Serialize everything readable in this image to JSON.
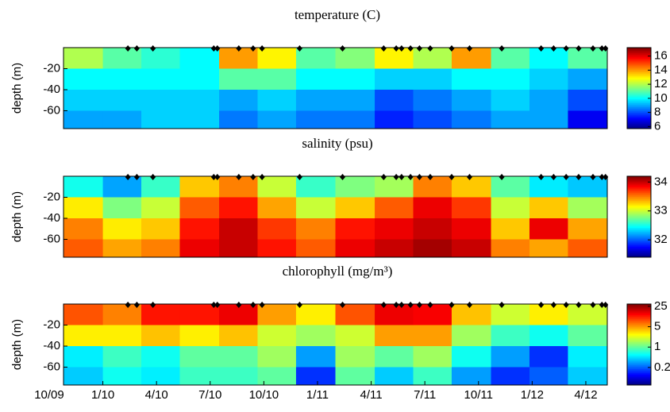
{
  "chart_data": [
    {
      "type": "heatmap",
      "title": "temperature (C)",
      "ylabel": "depth (m)",
      "colormap": "jet",
      "xlim": [
        0.8,
        31.2
      ],
      "ylim": [
        -77,
        0
      ],
      "yticks": [
        -20,
        -40,
        -60
      ],
      "clim": [
        5.7,
        17.2
      ],
      "cticks": [
        6,
        8,
        10,
        12,
        14,
        16
      ],
      "samples": [
        4.4,
        4.9,
        5.8,
        9.2,
        9.4,
        10.6,
        11.4,
        11.9,
        14.0,
        16.4,
        18.7,
        19.4,
        19.7,
        20.2,
        20.7,
        21.3,
        22.5,
        23.5,
        25.3,
        27.5,
        28.2,
        28.9,
        29.6,
        30.4,
        30.9,
        31.1
      ],
      "x": [
        1.9,
        4.1,
        6.2,
        8.4,
        10.6,
        12.7,
        14.9,
        17.1,
        19.3,
        21.4,
        23.6,
        25.8,
        27.9,
        30.1
      ],
      "depths": [
        -10,
        -30,
        -50,
        -70
      ],
      "z": [
        [
          12,
          10,
          9.5,
          9
        ],
        [
          11,
          10,
          9.5,
          9
        ],
        [
          10.5,
          10,
          9.5,
          9.5
        ],
        [
          10,
          10,
          9.5,
          9.5
        ],
        [
          14,
          11,
          9,
          8.5
        ],
        [
          13,
          11,
          9.5,
          9
        ],
        [
          11,
          10,
          9,
          8.5
        ],
        [
          11.5,
          10,
          9,
          8.5
        ],
        [
          13,
          9.5,
          8,
          7.5
        ],
        [
          12,
          9.5,
          8.5,
          8
        ],
        [
          14,
          10,
          9,
          8.5
        ],
        [
          11,
          10,
          9.5,
          9
        ],
        [
          10,
          9.5,
          9,
          9
        ],
        [
          11,
          9,
          8,
          7
        ]
      ]
    },
    {
      "type": "heatmap",
      "title": "salinity (psu)",
      "ylabel": "depth (m)",
      "colormap": "jet",
      "xlim": [
        0.8,
        31.2
      ],
      "ylim": [
        -77,
        0
      ],
      "yticks": [
        -20,
        -40,
        -60
      ],
      "clim": [
        31.4,
        34.2
      ],
      "cticks": [
        32,
        33,
        34
      ],
      "samples": [
        4.4,
        4.9,
        5.8,
        9.2,
        9.4,
        10.6,
        11.4,
        11.9,
        14.0,
        16.4,
        18.7,
        19.4,
        19.7,
        20.2,
        20.7,
        21.3,
        22.5,
        23.5,
        25.3,
        27.5,
        28.2,
        28.9,
        29.6,
        30.4,
        30.9,
        31.1
      ],
      "x": [
        1.9,
        4.1,
        6.2,
        8.4,
        10.6,
        12.7,
        14.9,
        17.1,
        19.3,
        21.4,
        23.6,
        25.8,
        27.9,
        30.1
      ],
      "depths": [
        -10,
        -30,
        -50,
        -70
      ],
      "z": [
        [
          32.5,
          33.2,
          33.5,
          33.6
        ],
        [
          32.2,
          32.8,
          33.2,
          33.4
        ],
        [
          32.6,
          33,
          33.3,
          33.5
        ],
        [
          33.3,
          33.6,
          33.8,
          33.9
        ],
        [
          33.5,
          33.8,
          34,
          34
        ],
        [
          33,
          33.4,
          33.7,
          33.8
        ],
        [
          32.6,
          33,
          33.5,
          33.6
        ],
        [
          32.8,
          33.3,
          33.8,
          33.9
        ],
        [
          32.9,
          33.6,
          33.9,
          34
        ],
        [
          33.5,
          33.9,
          34,
          34.1
        ],
        [
          33.3,
          33.7,
          33.9,
          34
        ],
        [
          32.7,
          33,
          33.3,
          33.5
        ],
        [
          32.4,
          33.3,
          33.9,
          33.4
        ],
        [
          32.3,
          32.9,
          33.4,
          33.6
        ]
      ]
    },
    {
      "type": "heatmap",
      "title": "chlorophyll (mg/m³)",
      "ylabel": "depth (m)",
      "colormap": "jet",
      "clog": true,
      "xlim": [
        0.8,
        31.2
      ],
      "ylim": [
        -77,
        0
      ],
      "yticks": [
        -20,
        -40,
        -60
      ],
      "xticks": [
        {
          "value": 0,
          "label": "10/09"
        },
        {
          "value": 3,
          "label": "1/10"
        },
        {
          "value": 6,
          "label": "4/10"
        },
        {
          "value": 9,
          "label": "7/10"
        },
        {
          "value": 12,
          "label": "10/10"
        },
        {
          "value": 15,
          "label": "1/11"
        },
        {
          "value": 18,
          "label": "4/11"
        },
        {
          "value": 21,
          "label": "7/11"
        },
        {
          "value": 24,
          "label": "10/11"
        },
        {
          "value": 27,
          "label": "1/12"
        },
        {
          "value": 30,
          "label": "4/12"
        }
      ],
      "clim": [
        0.05,
        30
      ],
      "cticks": [
        0.2,
        1,
        5,
        25
      ],
      "samples": [
        4.4,
        4.9,
        5.8,
        9.2,
        9.4,
        10.6,
        11.4,
        11.9,
        14.0,
        16.4,
        18.7,
        19.4,
        19.7,
        20.2,
        20.7,
        21.3,
        22.5,
        23.5,
        25.3,
        27.5,
        28.2,
        28.9,
        29.6,
        30.4,
        30.9,
        31.1
      ],
      "x": [
        1.9,
        4.1,
        6.2,
        8.4,
        10.6,
        12.7,
        14.9,
        17.1,
        19.3,
        21.4,
        23.6,
        25.8,
        27.9,
        30.1
      ],
      "depths": [
        -10,
        -30,
        -50,
        -70
      ],
      "z": [
        [
          8,
          3,
          0.5,
          0.4
        ],
        [
          6,
          3,
          0.8,
          0.6
        ],
        [
          12,
          4,
          0.6,
          0.5
        ],
        [
          12,
          3,
          1,
          0.8
        ],
        [
          15,
          4,
          1,
          0.8
        ],
        [
          5,
          2,
          1.5,
          1
        ],
        [
          3,
          1.5,
          0.3,
          0.15
        ],
        [
          8,
          2,
          1.5,
          1
        ],
        [
          15,
          5,
          1,
          0.4
        ],
        [
          14,
          5,
          1.5,
          0.8
        ],
        [
          4,
          1.5,
          0.6,
          0.3
        ],
        [
          2,
          0.8,
          0.3,
          0.15
        ],
        [
          3,
          0.6,
          0.15,
          0.2
        ],
        [
          2,
          1,
          0.5,
          0.4
        ]
      ]
    }
  ]
}
